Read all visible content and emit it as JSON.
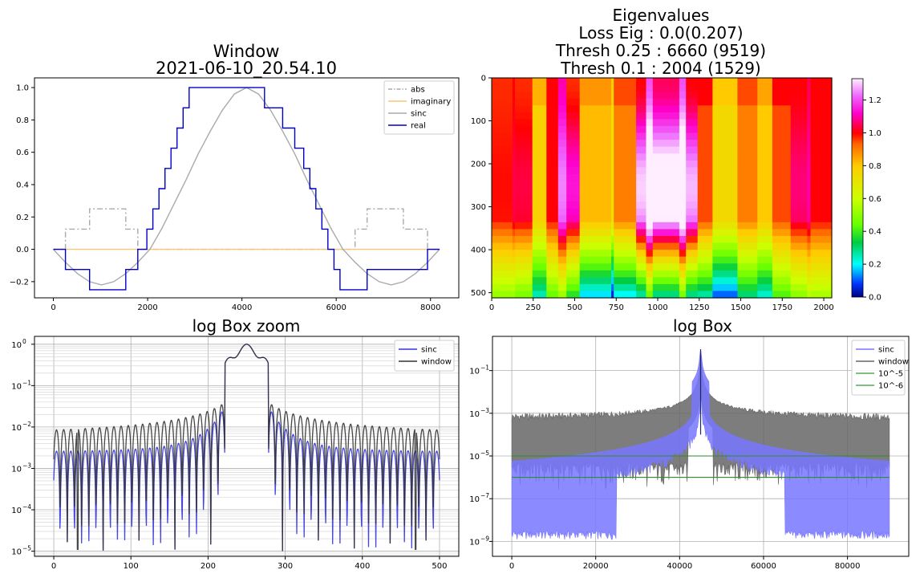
{
  "chart_data": [
    {
      "type": "line",
      "title": "Window\n2021-06-10_20.54.10",
      "xlabel": "",
      "ylabel": "",
      "xlim": [
        -400,
        8600
      ],
      "ylim": [
        -0.3,
        1.06
      ],
      "xticks": [
        0,
        2000,
        4000,
        6000,
        8000
      ],
      "xtick_labels": [
        "0",
        "2000",
        "4000",
        "6000",
        "8000"
      ],
      "yticks": [
        -0.2,
        0.0,
        0.2,
        0.4,
        0.6,
        0.8,
        1.0
      ],
      "ytick_labels": [
        "−0.2",
        "0.0",
        "0.2",
        "0.4",
        "0.6",
        "0.8",
        "1.0"
      ],
      "grid": false,
      "legend": "top-right",
      "series": [
        {
          "name": "abs",
          "color": "#aaaaaa",
          "style": "dashdot",
          "x": [
            0,
            256,
            256,
            768,
            768,
            1536,
            1536,
            1792,
            1792,
            6400,
            6400,
            6656,
            6656,
            7424,
            7424,
            7936,
            7936,
            8192
          ],
          "y": [
            0,
            0,
            0.125,
            0.125,
            0.25,
            0.25,
            0.125,
            0.125,
            0,
            0,
            0.125,
            0.125,
            0.25,
            0.25,
            0.125,
            0.125,
            0,
            0
          ]
        },
        {
          "name": "imaginary",
          "color": "#f5c97a",
          "style": "solid",
          "x": [
            0,
            8192
          ],
          "y": [
            0,
            0
          ]
        },
        {
          "name": "sinc",
          "color": "#aaaaaa",
          "style": "solid",
          "x": [
            0,
            256,
            512,
            768,
            1024,
            1280,
            1536,
            1792,
            2048,
            2304,
            2560,
            2816,
            3072,
            3328,
            3584,
            3840,
            4096,
            4352,
            4608,
            4864,
            5120,
            5376,
            5632,
            5888,
            6144,
            6400,
            6656,
            6912,
            7168,
            7424,
            7680,
            7936,
            8192
          ],
          "y": [
            0,
            -0.08,
            -0.15,
            -0.2,
            -0.22,
            -0.2,
            -0.15,
            -0.08,
            0,
            0.13,
            0.28,
            0.43,
            0.59,
            0.73,
            0.86,
            0.96,
            1.0,
            0.96,
            0.86,
            0.73,
            0.59,
            0.43,
            0.28,
            0.13,
            0,
            -0.08,
            -0.15,
            -0.2,
            -0.22,
            -0.2,
            -0.15,
            -0.08,
            0
          ]
        },
        {
          "name": "real",
          "color": "#0000cc",
          "style": "steps",
          "x": [
            0,
            256,
            768,
            1536,
            1792,
            1984,
            2112,
            2240,
            2368,
            2496,
            2624,
            2752,
            2880,
            3072,
            3328,
            3712,
            4480,
            4864,
            5120,
            5312,
            5440,
            5568,
            5696,
            5824,
            5952,
            6080,
            6208,
            6400,
            6656,
            7424,
            7936,
            8192
          ],
          "y": [
            0,
            -0.125,
            -0.25,
            -0.125,
            0,
            0.125,
            0.25,
            0.375,
            0.5,
            0.625,
            0.75,
            0.875,
            1.0,
            1.0,
            1.0,
            1.0,
            0.875,
            0.75,
            0.625,
            0.5,
            0.375,
            0.25,
            0.125,
            0,
            -0.125,
            -0.25,
            -0.25,
            -0.25,
            -0.125,
            -0.125,
            0,
            0
          ]
        }
      ]
    },
    {
      "type": "heatmap",
      "title": "Eigenvalues\nLoss Eig : 0.0(0.207)\nThresh 0.25 : 6660 (9519)\nThresh 0.1 : 2004 (1529)",
      "xlim": [
        0,
        2048
      ],
      "ylim": [
        512,
        0
      ],
      "xticks": [
        0,
        250,
        500,
        750,
        1000,
        1250,
        1500,
        1750,
        2000
      ],
      "xtick_labels": [
        "0",
        "250",
        "500",
        "750",
        "1000",
        "1250",
        "1500",
        "1750",
        "2000"
      ],
      "yticks": [
        0,
        100,
        200,
        300,
        400,
        500
      ],
      "ytick_labels": [
        "0",
        "100",
        "200",
        "300",
        "400",
        "500"
      ],
      "colorbar": {
        "colormap": "gist_ncar-like",
        "range": [
          0,
          1.33
        ],
        "ticks": [
          0.0,
          0.2,
          0.4,
          0.6,
          0.8,
          1.0,
          1.2
        ],
        "tick_labels": [
          "0.0",
          "0.2",
          "0.4",
          "0.6",
          "0.8",
          "1.0",
          "1.2"
        ]
      }
    },
    {
      "type": "line",
      "title": "log Box zoom",
      "xlabel": "",
      "ylabel": "",
      "xlim": [
        -25,
        525
      ],
      "ylim": [
        7.5e-06,
        1.55
      ],
      "yscale": "log",
      "xticks": [
        0,
        100,
        200,
        300,
        400,
        500
      ],
      "xtick_labels": [
        "0",
        "100",
        "200",
        "300",
        "400",
        "500"
      ],
      "yticks": [
        1e-05,
        0.0001,
        0.001,
        0.01,
        0.1,
        1
      ],
      "ytick_labels": [
        "10",
        "10",
        "10",
        "10",
        "10",
        "10"
      ],
      "ytick_exponents": [
        "−5",
        "−4",
        "−3",
        "−2",
        "−1",
        "0"
      ],
      "grid": true,
      "legend": "top-right",
      "series": [
        {
          "name": "sinc",
          "color": "#3333dd",
          "peak": 1.0,
          "range": [
            0,
            500
          ]
        },
        {
          "name": "window",
          "color": "#333333",
          "peak": 1.0,
          "range": [
            0,
            500
          ]
        }
      ]
    },
    {
      "type": "line",
      "title": "log Box",
      "xlabel": "",
      "ylabel": "",
      "xlim": [
        -4600,
        94600
      ],
      "ylim": [
        2e-10,
        4
      ],
      "yscale": "log",
      "xticks": [
        0,
        20000,
        40000,
        60000,
        80000
      ],
      "xtick_labels": [
        "0",
        "20000",
        "40000",
        "60000",
        "80000"
      ],
      "yticks": [
        1e-09,
        1e-07,
        1e-05,
        0.001,
        0.1
      ],
      "ytick_labels": [
        "10",
        "10",
        "10",
        "10",
        "10"
      ],
      "ytick_exponents": [
        "−9",
        "−7",
        "−5",
        "−3",
        "−1"
      ],
      "grid": true,
      "legend": "top-right",
      "series": [
        {
          "name": "sinc",
          "color": "#7777ff",
          "peak": 1.0,
          "range": [
            0,
            90000
          ]
        },
        {
          "name": "window",
          "color": "#666666",
          "peak": 1.0,
          "range": [
            0,
            90000
          ]
        },
        {
          "name": "10^-5",
          "color": "#55aa55",
          "constant": 1e-05,
          "range": [
            0,
            90000
          ]
        },
        {
          "name": "10^-6",
          "color": "#55aa55",
          "constant": 1e-06,
          "range": [
            0,
            90000
          ]
        }
      ]
    }
  ]
}
